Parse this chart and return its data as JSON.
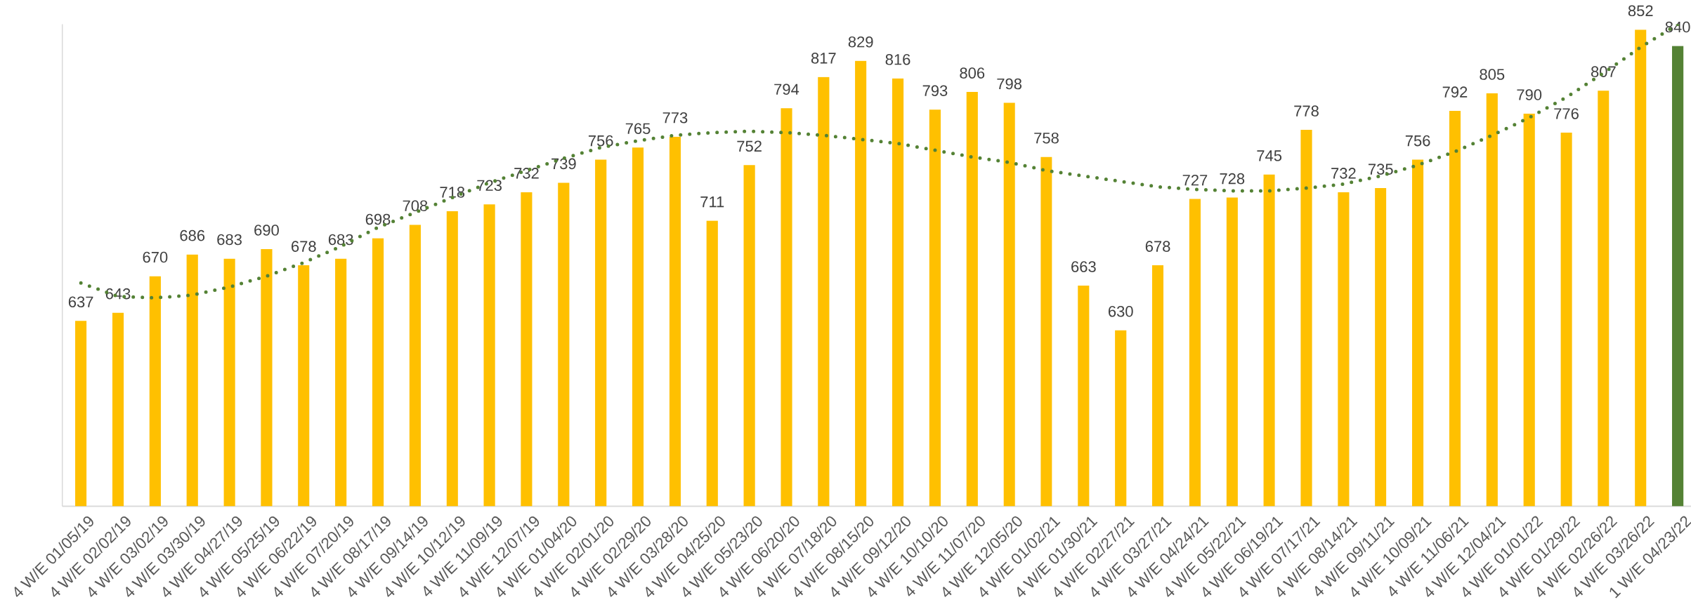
{
  "chart_data": {
    "type": "bar",
    "categories": [
      "4 W/E 01/05/19",
      "4 W/E 02/02/19",
      "4 W/E 03/02/19",
      "4 W/E 03/30/19",
      "4 W/E 04/27/19",
      "4 W/E 05/25/19",
      "4 W/E 06/22/19",
      "4 W/E 07/20/19",
      "4 W/E 08/17/19",
      "4 W/E 09/14/19",
      "4 W/E 10/12/19",
      "4 W/E 11/09/19",
      "4 W/E 12/07/19",
      "4 W/E 01/04/20",
      "4 W/E 02/01/20",
      "4 W/E 02/29/20",
      "4 W/E 03/28/20",
      "4 W/E 04/25/20",
      "4 W/E 05/23/20",
      "4 W/E 06/20/20",
      "4 W/E 07/18/20",
      "4 W/E 08/15/20",
      "4 W/E 09/12/20",
      "4 W/E 10/10/20",
      "4 W/E 11/07/20",
      "4 W/E 12/05/20",
      "4 W/E 01/02/21",
      "4 W/E 01/30/21",
      "4 W/E 02/27/21",
      "4 W/E 03/27/21",
      "4 W/E 04/24/21",
      "4 W/E 05/22/21",
      "4 W/E 06/19/21",
      "4 W/E 07/17/21",
      "4 W/E 08/14/21",
      "4 W/E 09/11/21",
      "4 W/E 10/09/21",
      "4 W/E 11/06/21",
      "4 W/E 12/04/21",
      "4 W/E 01/01/22",
      "4 W/E 01/29/22",
      "4 W/E 02/26/22",
      "4 W/E 03/26/22",
      "1 W/E 04/23/22"
    ],
    "series": [
      {
        "data_labels": true,
        "colors": [
          "#ffc000",
          "#ffc000",
          "#ffc000",
          "#ffc000",
          "#ffc000",
          "#ffc000",
          "#ffc000",
          "#ffc000",
          "#ffc000",
          "#ffc000",
          "#ffc000",
          "#ffc000",
          "#ffc000",
          "#ffc000",
          "#ffc000",
          "#ffc000",
          "#ffc000",
          "#ffc000",
          "#ffc000",
          "#ffc000",
          "#ffc000",
          "#ffc000",
          "#ffc000",
          "#ffc000",
          "#ffc000",
          "#ffc000",
          "#ffc000",
          "#ffc000",
          "#ffc000",
          "#ffc000",
          "#ffc000",
          "#ffc000",
          "#ffc000",
          "#ffc000",
          "#ffc000",
          "#ffc000",
          "#ffc000",
          "#ffc000",
          "#ffc000",
          "#ffc000",
          "#ffc000",
          "#ffc000",
          "#ffc000",
          "#548235"
        ],
        "values": [
          637,
          643,
          670,
          686,
          683,
          690,
          678,
          683,
          698,
          708,
          718,
          723,
          732,
          739,
          756,
          765,
          773,
          711,
          752,
          794,
          817,
          829,
          816,
          793,
          806,
          798,
          758,
          663,
          630,
          678,
          727,
          728,
          745,
          778,
          732,
          735,
          756,
          792,
          805,
          790,
          776,
          807,
          852,
          840
        ]
      },
      {
        "type": "line",
        "color": "#548235",
        "line_style": "dotted",
        "values": [
          665,
          655,
          654,
          656,
          662,
          670,
          680,
          692,
          706,
          717,
          728,
          739,
          748,
          757,
          765,
          770,
          774,
          776,
          777,
          776,
          774,
          771,
          768,
          763,
          758,
          754,
          748,
          744,
          740,
          736,
          734,
          733,
          733,
          735,
          738,
          744,
          752,
          762,
          774,
          787,
          802,
          820,
          839,
          856
        ]
      }
    ],
    "ylim": [
      500,
      856
    ],
    "tick_labels": "x"
  }
}
